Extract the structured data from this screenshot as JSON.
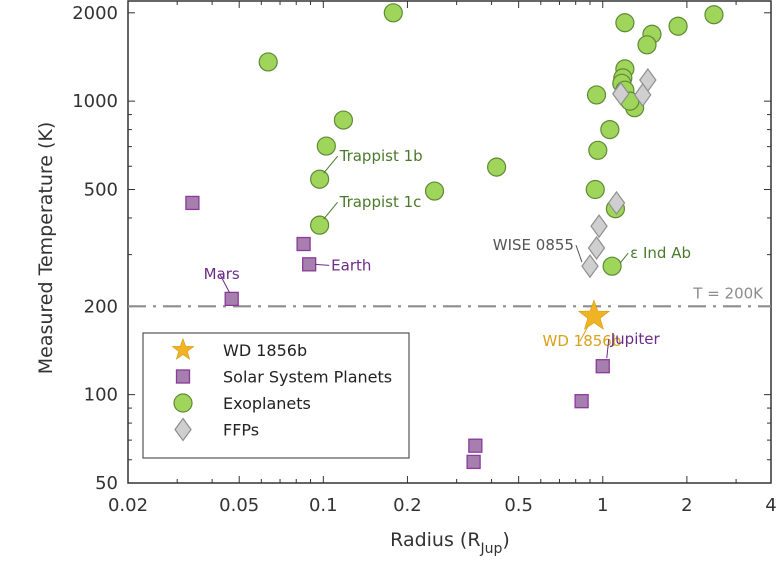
{
  "chart_data": {
    "type": "scatter",
    "title": "",
    "xlabel": "Radius (R",
    "xlabel_sub": "Jup",
    "xlabel_close": ")",
    "ylabel": "Measured Temperature (K)",
    "xscale": "log",
    "yscale": "log",
    "xlim": [
      0.02,
      4
    ],
    "ylim": [
      50,
      2200
    ],
    "xticks": [
      0.02,
      0.05,
      0.1,
      0.2,
      0.5,
      1,
      2,
      4
    ],
    "xtick_labels": [
      "0.02",
      "0.05",
      "0.1",
      "0.2",
      "0.5",
      "1",
      "2",
      "4"
    ],
    "yticks": [
      50,
      100,
      200,
      500,
      1000,
      2000
    ],
    "ytick_labels": [
      "50",
      "100",
      "200",
      "500",
      "1000",
      "2000"
    ],
    "grid": false,
    "legend_position": "lower-left",
    "reference_line": {
      "y": 200,
      "label": "T = 200K",
      "color": "#8c8c8c",
      "style": "dash-dot"
    },
    "series": [
      {
        "name": "WD 1856b",
        "marker": "star",
        "color": "#f0b323",
        "edge": "#d49a10",
        "points": [
          [
            0.93,
            185
          ]
        ]
      },
      {
        "name": "Solar System Planets",
        "marker": "square",
        "color": "#a77fae",
        "edge": "#8a3a9a",
        "points": [
          [
            0.034,
            450
          ],
          [
            0.085,
            326
          ],
          [
            0.089,
            278
          ],
          [
            0.047,
            212
          ],
          [
            1.0,
            125
          ],
          [
            0.84,
            95
          ],
          [
            0.35,
            67
          ],
          [
            0.345,
            59
          ]
        ]
      },
      {
        "name": "Exoplanets",
        "marker": "circle",
        "color": "#9fd55a",
        "edge": "#5e8a34",
        "points": [
          [
            0.0635,
            1360
          ],
          [
            0.178,
            2000
          ],
          [
            0.1025,
            703
          ],
          [
            0.118,
            862
          ],
          [
            0.097,
            542
          ],
          [
            0.097,
            378
          ],
          [
            0.25,
            494
          ],
          [
            0.417,
            596
          ],
          [
            1.2,
            1850
          ],
          [
            1.5,
            1690
          ],
          [
            1.44,
            1556
          ],
          [
            1.86,
            1800
          ],
          [
            2.5,
            1970
          ],
          [
            1.2,
            1288
          ],
          [
            1.18,
            1200
          ],
          [
            1.17,
            1150
          ],
          [
            1.2,
            1090
          ],
          [
            0.95,
            1050
          ],
          [
            1.3,
            950
          ],
          [
            1.25,
            1000
          ],
          [
            1.06,
            800
          ],
          [
            0.96,
            680
          ],
          [
            0.94,
            500
          ],
          [
            1.11,
            430
          ],
          [
            1.08,
            274
          ]
        ]
      },
      {
        "name": "FFPs",
        "marker": "diamond",
        "color": "#cfcfcf",
        "edge": "#8e8e8e",
        "points": [
          [
            1.45,
            1180
          ],
          [
            1.16,
            1060
          ],
          [
            1.39,
            1050
          ],
          [
            1.12,
            450
          ],
          [
            0.97,
            375
          ],
          [
            0.95,
            316
          ],
          [
            0.9,
            274
          ]
        ]
      }
    ],
    "annotations": [
      {
        "text": "Trappist 1b",
        "x": 0.097,
        "y": 542,
        "color": "#4a7a2c"
      },
      {
        "text": "Trappist 1c",
        "x": 0.097,
        "y": 378,
        "color": "#4a7a2c"
      },
      {
        "text": "Earth",
        "x": 0.089,
        "y": 278,
        "color": "#6b2c86"
      },
      {
        "text": "Mars",
        "x": 0.047,
        "y": 212,
        "color": "#6b2c86"
      },
      {
        "text": "WISE 0855",
        "x": 0.9,
        "y": 274,
        "color": "#555555"
      },
      {
        "text": "ε Ind Ab",
        "x": 1.08,
        "y": 274,
        "color": "#4a7a2c"
      },
      {
        "text": "WD 1856b",
        "x": 0.93,
        "y": 185,
        "color": "#d9a21c"
      },
      {
        "text": "Jupiter",
        "x": 1.0,
        "y": 125,
        "color": "#6b2c86"
      }
    ]
  }
}
